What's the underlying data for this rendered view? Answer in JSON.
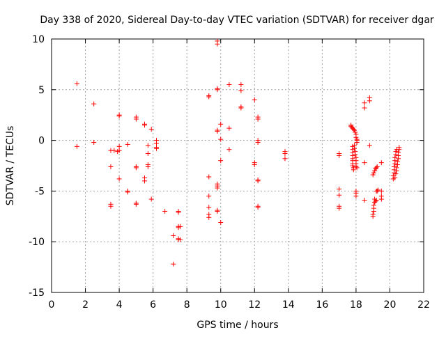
{
  "chart_data": {
    "type": "scatter",
    "title": "Day 338 of 2020, Sidereal Day-to-day VTEC variation (SDTVAR) for receiver dgar",
    "xlabel": "GPS time / hours",
    "ylabel": "SDTVAR / TECUs",
    "xlim": [
      0,
      22
    ],
    "ylim": [
      -15,
      10
    ],
    "xticks": [
      "0",
      "2",
      "4",
      "6",
      "8",
      "10",
      "12",
      "14",
      "16",
      "18",
      "20",
      "22"
    ],
    "yticks": [
      "10",
      "5",
      "0",
      "-5",
      "-10",
      "-15"
    ],
    "xtick_values": [
      0,
      2,
      4,
      6,
      8,
      10,
      12,
      14,
      16,
      18,
      20,
      22
    ],
    "ytick_values": [
      10,
      5,
      0,
      -5,
      -10,
      -15
    ],
    "grid": true,
    "marker": "+",
    "color": "#ff0000",
    "series": [
      {
        "name": "SDTVAR",
        "points": [
          [
            1.5,
            5.6
          ],
          [
            1.5,
            -0.6
          ],
          [
            2.5,
            3.6
          ],
          [
            2.5,
            -0.2
          ],
          [
            3.5,
            -1.0
          ],
          [
            3.5,
            -2.6
          ],
          [
            3.5,
            -6.3
          ],
          [
            3.5,
            -6.5
          ],
          [
            3.7,
            -1.0
          ],
          [
            3.9,
            -1.1
          ],
          [
            4.0,
            2.5
          ],
          [
            4.0,
            2.4
          ],
          [
            4.0,
            -0.6
          ],
          [
            4.0,
            -1.0
          ],
          [
            4.0,
            -3.8
          ],
          [
            4.5,
            -0.4
          ],
          [
            4.5,
            -5.0
          ],
          [
            4.5,
            -5.1
          ],
          [
            5.0,
            2.3
          ],
          [
            5.0,
            2.1
          ],
          [
            5.0,
            -2.6
          ],
          [
            5.0,
            -2.7
          ],
          [
            5.0,
            -6.2
          ],
          [
            5.0,
            -6.3
          ],
          [
            5.5,
            1.6
          ],
          [
            5.5,
            1.5
          ],
          [
            5.5,
            -3.7
          ],
          [
            5.5,
            -4.0
          ],
          [
            5.7,
            -0.5
          ],
          [
            5.7,
            -1.3
          ],
          [
            5.7,
            -2.4
          ],
          [
            5.7,
            -2.6
          ],
          [
            5.9,
            1.1
          ],
          [
            5.9,
            -5.8
          ],
          [
            6.2,
            0.0
          ],
          [
            6.2,
            -0.3
          ],
          [
            6.2,
            -0.7
          ],
          [
            6.2,
            -0.8
          ],
          [
            6.7,
            -7.0
          ],
          [
            7.2,
            -9.4
          ],
          [
            7.2,
            -12.2
          ],
          [
            7.5,
            -7.0
          ],
          [
            7.5,
            -7.1
          ],
          [
            7.5,
            -8.5
          ],
          [
            7.5,
            -8.6
          ],
          [
            7.5,
            -9.7
          ],
          [
            7.5,
            -9.8
          ],
          [
            7.6,
            -8.5
          ],
          [
            7.6,
            -9.8
          ],
          [
            9.3,
            4.4
          ],
          [
            9.3,
            4.3
          ],
          [
            9.3,
            -3.6
          ],
          [
            9.3,
            -5.5
          ],
          [
            9.3,
            -6.6
          ],
          [
            9.3,
            -7.3
          ],
          [
            9.3,
            -7.6
          ],
          [
            9.8,
            9.8
          ],
          [
            9.8,
            9.5
          ],
          [
            9.8,
            5.1
          ],
          [
            9.8,
            5.0
          ],
          [
            9.8,
            1.0
          ],
          [
            9.8,
            0.9
          ],
          [
            9.8,
            -4.3
          ],
          [
            9.8,
            -4.5
          ],
          [
            9.8,
            -4.7
          ],
          [
            9.8,
            -6.9
          ],
          [
            9.8,
            -7.0
          ],
          [
            10.0,
            1.6
          ],
          [
            10.0,
            0.1
          ],
          [
            10.0,
            -2.0
          ],
          [
            10.0,
            -8.1
          ],
          [
            10.5,
            5.5
          ],
          [
            10.5,
            1.2
          ],
          [
            10.5,
            -0.9
          ],
          [
            11.2,
            5.5
          ],
          [
            11.2,
            4.9
          ],
          [
            11.2,
            3.3
          ],
          [
            11.2,
            3.2
          ],
          [
            12.0,
            4.0
          ],
          [
            12.0,
            -2.2
          ],
          [
            12.0,
            -2.4
          ],
          [
            12.2,
            2.3
          ],
          [
            12.2,
            2.1
          ],
          [
            12.2,
            0.0
          ],
          [
            12.2,
            -0.2
          ],
          [
            12.2,
            -3.9
          ],
          [
            12.2,
            -4.0
          ],
          [
            12.2,
            -6.5
          ],
          [
            12.2,
            -6.6
          ],
          [
            13.8,
            -1.1
          ],
          [
            13.8,
            -1.3
          ],
          [
            13.8,
            -1.8
          ],
          [
            17.0,
            -1.3
          ],
          [
            17.0,
            -1.5
          ],
          [
            17.0,
            -4.8
          ],
          [
            17.0,
            -5.4
          ],
          [
            17.0,
            -6.5
          ],
          [
            17.0,
            -6.7
          ],
          [
            17.7,
            1.5
          ],
          [
            17.7,
            1.4
          ],
          [
            17.75,
            1.3
          ],
          [
            17.8,
            1.2
          ],
          [
            17.85,
            1.1
          ],
          [
            17.9,
            1.0
          ],
          [
            17.95,
            0.8
          ],
          [
            18.0,
            0.6
          ],
          [
            18.0,
            0.3
          ],
          [
            18.05,
            0.1
          ],
          [
            18.05,
            0.0
          ],
          [
            18.05,
            -0.2
          ],
          [
            17.8,
            -0.6
          ],
          [
            17.8,
            -0.9
          ],
          [
            17.8,
            -1.2
          ],
          [
            17.8,
            -1.5
          ],
          [
            17.8,
            -1.8
          ],
          [
            17.8,
            -2.0
          ],
          [
            17.8,
            -2.3
          ],
          [
            17.8,
            -2.5
          ],
          [
            17.85,
            -2.7
          ],
          [
            17.85,
            -2.9
          ],
          [
            17.9,
            -0.5
          ],
          [
            17.9,
            -0.8
          ],
          [
            17.95,
            -1.1
          ],
          [
            17.95,
            -1.4
          ],
          [
            18.0,
            -1.7
          ],
          [
            18.0,
            -2.0
          ],
          [
            18.0,
            -2.3
          ],
          [
            18.0,
            -2.6
          ],
          [
            18.05,
            -2.7
          ],
          [
            18.0,
            -5.0
          ],
          [
            18.0,
            -5.2
          ],
          [
            18.0,
            -5.5
          ],
          [
            18.5,
            3.7
          ],
          [
            18.5,
            3.2
          ],
          [
            18.5,
            -2.2
          ],
          [
            18.5,
            -5.9
          ],
          [
            18.8,
            4.2
          ],
          [
            18.8,
            3.9
          ],
          [
            18.8,
            -0.5
          ],
          [
            19.0,
            -7.5
          ],
          [
            19.0,
            -7.3
          ],
          [
            19.05,
            -7.0
          ],
          [
            19.05,
            -6.7
          ],
          [
            19.05,
            -6.4
          ],
          [
            19.1,
            -6.1
          ],
          [
            19.1,
            -5.8
          ],
          [
            19.15,
            -6.0
          ],
          [
            19.2,
            -5.9
          ],
          [
            19.0,
            -3.4
          ],
          [
            19.05,
            -3.2
          ],
          [
            19.1,
            -3.0
          ],
          [
            19.15,
            -2.8
          ],
          [
            19.2,
            -2.7
          ],
          [
            19.25,
            -2.6
          ],
          [
            19.2,
            -5.0
          ],
          [
            19.25,
            -5.0
          ],
          [
            19.3,
            -4.9
          ],
          [
            19.5,
            -2.2
          ],
          [
            19.5,
            -5.0
          ],
          [
            19.5,
            -5.5
          ],
          [
            19.5,
            -5.8
          ],
          [
            20.2,
            -3.8
          ],
          [
            20.2,
            -3.5
          ],
          [
            20.25,
            -3.2
          ],
          [
            20.25,
            -2.9
          ],
          [
            20.25,
            -2.6
          ],
          [
            20.3,
            -2.3
          ],
          [
            20.3,
            -2.0
          ],
          [
            20.3,
            -1.7
          ],
          [
            20.35,
            -1.4
          ],
          [
            20.35,
            -1.1
          ],
          [
            20.4,
            -0.9
          ],
          [
            20.3,
            -3.7
          ],
          [
            20.35,
            -3.3
          ],
          [
            20.4,
            -3.0
          ],
          [
            20.4,
            -2.7
          ],
          [
            20.45,
            -2.4
          ],
          [
            20.45,
            -2.1
          ],
          [
            20.5,
            -1.8
          ],
          [
            20.5,
            -1.5
          ],
          [
            20.5,
            -1.2
          ],
          [
            20.55,
            -0.9
          ],
          [
            20.55,
            -0.7
          ]
        ]
      }
    ]
  }
}
